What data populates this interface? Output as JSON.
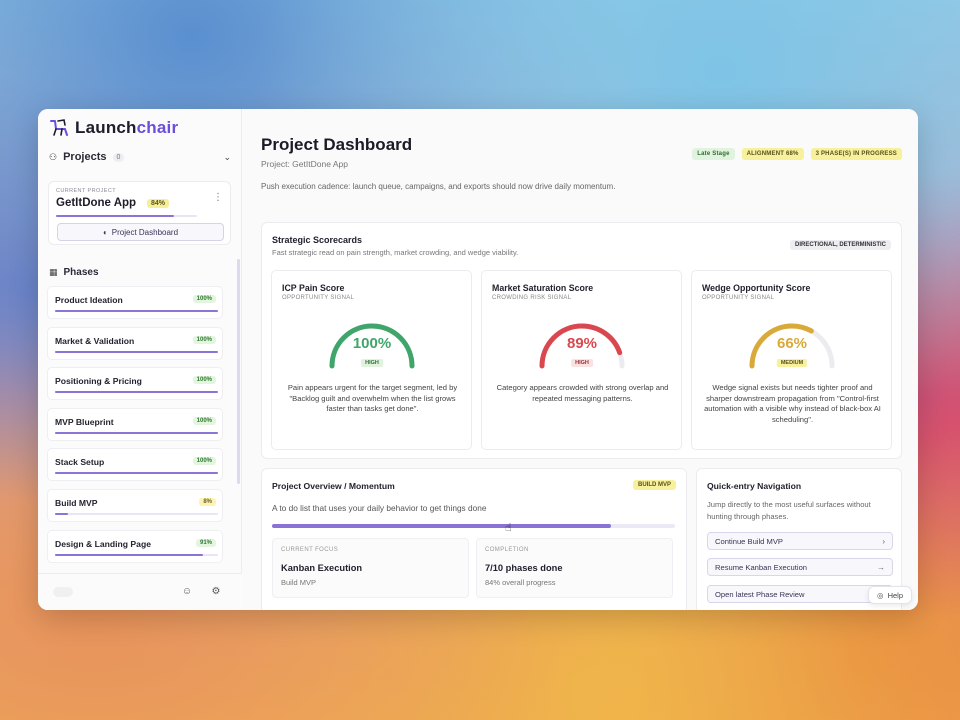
{
  "app": {
    "name_prefix": "Launch",
    "name_accent": "chair"
  },
  "sidebar": {
    "projects_label": "Projects",
    "projects_count": "0",
    "current_project_label": "CURRENT PROJECT",
    "current_project_name": "GetItDone App",
    "current_project_pct": "84%",
    "current_project_progress": 0.84,
    "dashboard_button": "Project Dashboard",
    "phases_label": "Phases",
    "phases": [
      {
        "label": "Product Ideation",
        "badge": "100%",
        "progress": 1.0
      },
      {
        "label": "Market & Validation",
        "badge": "100%",
        "progress": 1.0
      },
      {
        "label": "Positioning & Pricing",
        "badge": "100%",
        "progress": 1.0
      },
      {
        "label": "MVP Blueprint",
        "badge": "100%",
        "progress": 1.0
      },
      {
        "label": "Stack Setup",
        "badge": "100%",
        "progress": 1.0
      },
      {
        "label": "Build MVP",
        "badge": "8%",
        "progress": 0.08
      },
      {
        "label": "Design & Landing Page",
        "badge": "91%",
        "progress": 0.91
      }
    ]
  },
  "header": {
    "title": "Project Dashboard",
    "subtitle": "Project: GetItDone App",
    "note": "Push execution cadence: launch queue, campaigns, and exports should now drive daily momentum.",
    "tags": [
      "Late Stage",
      "ALIGNMENT 68%",
      "3 PHASE(S) IN PROGRESS"
    ]
  },
  "scorecards": {
    "title": "Strategic Scorecards",
    "subtitle": "Fast strategic read on pain strength, market crowding, and wedge viability.",
    "badge": "DIRECTIONAL, DETERMINISTIC",
    "cards": [
      {
        "title": "ICP Pain Score",
        "sub": "OPPORTUNITY SIGNAL",
        "value": "100%",
        "fraction": 1.0,
        "level": "HIGH",
        "color": "#3fa56a",
        "badge_bg": "#e1f3de",
        "badge_fg": "#2e6e2e",
        "desc": "Pain appears urgent for the target segment, led by \"Backlog guilt and overwhelm when the list grows faster than tasks get done\"."
      },
      {
        "title": "Market Saturation Score",
        "sub": "CROWDING RISK SIGNAL",
        "value": "89%",
        "fraction": 0.89,
        "level": "HIGH",
        "color": "#d9474f",
        "badge_bg": "#fbe2e2",
        "badge_fg": "#9a2c2c",
        "desc": "Category appears crowded with strong overlap and repeated messaging patterns."
      },
      {
        "title": "Wedge Opportunity Score",
        "sub": "OPPORTUNITY SIGNAL",
        "value": "66%",
        "fraction": 0.66,
        "level": "MEDIUM",
        "color": "#d9a93a",
        "badge_bg": "#f7f09c",
        "badge_fg": "#57501d",
        "desc": "Wedge signal exists but needs tighter proof and sharper downstream propagation from \"Control-first automation with a visible why instead of black-box AI scheduling\"."
      }
    ]
  },
  "overview": {
    "title": "Project Overview / Momentum",
    "badge": "BUILD MVP",
    "desc": "A to do list that uses your daily behavior to get things done",
    "progress": 0.84,
    "focus_label": "CURRENT FOCUS",
    "focus_value": "Kanban Execution",
    "focus_sub": "Build MVP",
    "completion_label": "COMPLETION",
    "completion_value": "7/10 phases done",
    "completion_sub": "84% overall progress"
  },
  "quick": {
    "title": "Quick-entry Navigation",
    "desc": "Jump directly to the most useful surfaces without hunting through phases.",
    "buttons": [
      "Continue Build MVP",
      "Resume Kanban Execution",
      "Open latest Phase Review"
    ],
    "help": "Help"
  }
}
